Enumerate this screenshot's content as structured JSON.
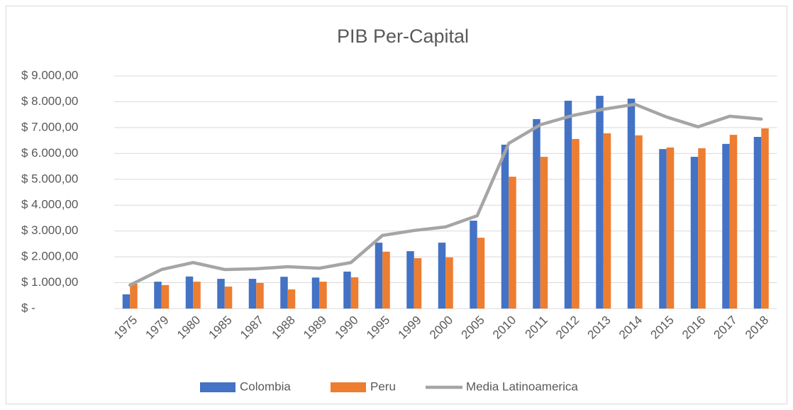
{
  "chart_data": {
    "type": "bar",
    "title": "PIB Per-Capital",
    "categories": [
      "1975",
      "1979",
      "1980",
      "1985",
      "1987",
      "1988",
      "1989",
      "1990",
      "1995",
      "1999",
      "2000",
      "2005",
      "2010",
      "2011",
      "2012",
      "2013",
      "2014",
      "2015",
      "2016",
      "2017",
      "2018"
    ],
    "series": [
      {
        "name": "Colombia",
        "color": "#4472c4",
        "type": "bar",
        "values": [
          550,
          1040,
          1240,
          1150,
          1150,
          1230,
          1200,
          1430,
          2550,
          2220,
          2550,
          3400,
          6340,
          7330,
          8040,
          8230,
          8120,
          6170,
          5870,
          6370,
          6640
        ]
      },
      {
        "name": "Peru",
        "color": "#ed7d31",
        "type": "bar",
        "values": [
          960,
          910,
          1040,
          850,
          990,
          740,
          1040,
          1210,
          2200,
          1950,
          1980,
          2740,
          5100,
          5870,
          6560,
          6780,
          6700,
          6230,
          6200,
          6720,
          6970
        ]
      },
      {
        "name": "Media Latinoamerica",
        "color": "#a5a5a5",
        "type": "line",
        "values": [
          910,
          1510,
          1780,
          1510,
          1540,
          1620,
          1560,
          1780,
          2830,
          3020,
          3160,
          3590,
          6390,
          7110,
          7460,
          7710,
          7900,
          7410,
          7030,
          7440,
          7330
        ]
      }
    ],
    "ylim": [
      0,
      9000
    ],
    "yticks": [
      {
        "value": 0,
        "label": "$ -"
      },
      {
        "value": 1000,
        "label": "$ 1.000,00"
      },
      {
        "value": 2000,
        "label": "$ 2.000,00"
      },
      {
        "value": 3000,
        "label": "$ 3.000,00"
      },
      {
        "value": 4000,
        "label": "$ 4.000,00"
      },
      {
        "value": 5000,
        "label": "$ 5.000,00"
      },
      {
        "value": 6000,
        "label": "$ 6.000,00"
      },
      {
        "value": 7000,
        "label": "$ 7.000,00"
      },
      {
        "value": 8000,
        "label": "$ 8.000,00"
      },
      {
        "value": 9000,
        "label": "$ 9.000,00"
      }
    ],
    "grid": true,
    "legend": "bottom"
  }
}
